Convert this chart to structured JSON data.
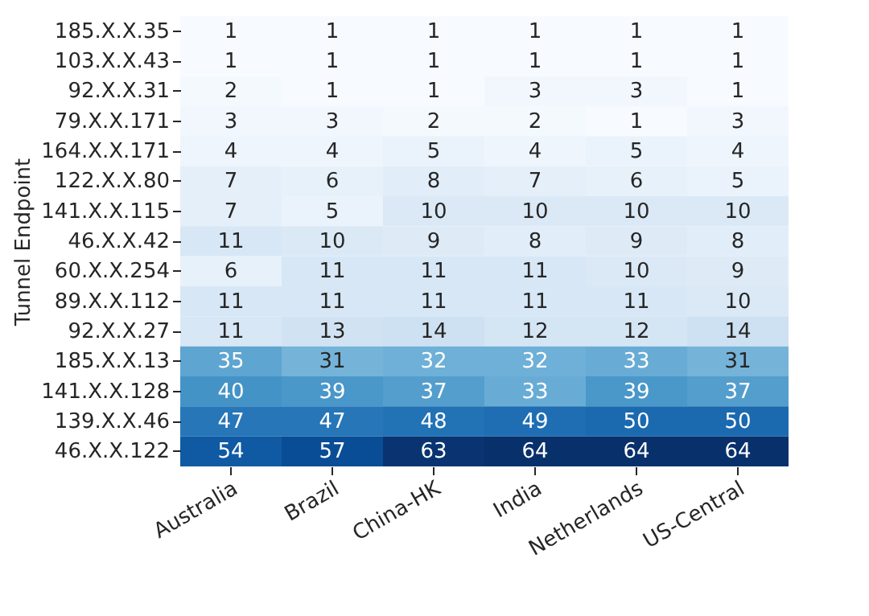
{
  "chart_data": {
    "type": "heatmap",
    "ylabel": "Tunnel Endpoint",
    "data_labels": true,
    "categories": [
      "Australia",
      "Brazil",
      "China-HK",
      "India",
      "Netherlands",
      "US-Central"
    ],
    "y_categories": [
      "185.X.X.35",
      "103.X.X.43",
      "92.X.X.31",
      "79.X.X.171",
      "164.X.X.171",
      "122.X.X.80",
      "141.X.X.115",
      "46.X.X.42",
      "60.X.X.254",
      "89.X.X.112",
      "92.X.X.27",
      "185.X.X.13",
      "141.X.X.128",
      "139.X.X.46",
      "46.X.X.122"
    ],
    "cells": [
      [
        1,
        1,
        1,
        1,
        1,
        1
      ],
      [
        1,
        1,
        1,
        1,
        1,
        1
      ],
      [
        2,
        1,
        1,
        3,
        3,
        1
      ],
      [
        3,
        3,
        2,
        2,
        1,
        3
      ],
      [
        4,
        4,
        5,
        4,
        5,
        4
      ],
      [
        7,
        6,
        8,
        7,
        6,
        5
      ],
      [
        7,
        5,
        10,
        10,
        10,
        10
      ],
      [
        11,
        10,
        9,
        8,
        9,
        8
      ],
      [
        6,
        11,
        11,
        11,
        10,
        9
      ],
      [
        11,
        11,
        11,
        11,
        11,
        10
      ],
      [
        11,
        13,
        14,
        12,
        12,
        14
      ],
      [
        35,
        31,
        32,
        32,
        33,
        31
      ],
      [
        40,
        39,
        37,
        33,
        39,
        37
      ],
      [
        47,
        47,
        48,
        49,
        50,
        50
      ],
      [
        54,
        57,
        63,
        64,
        64,
        64
      ]
    ]
  }
}
